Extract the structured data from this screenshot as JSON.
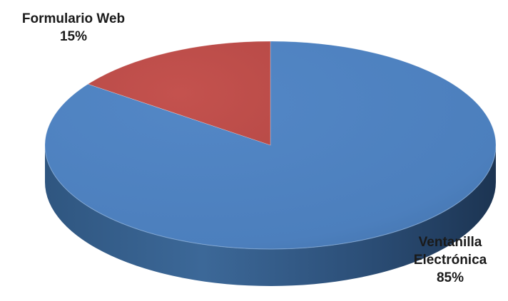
{
  "chart_data": {
    "type": "pie",
    "title": "",
    "slices": [
      {
        "label_lines": [
          "Ventanilla",
          "Electrónica"
        ],
        "percent_label": "85%",
        "value": 85,
        "color": "#4f81bd"
      },
      {
        "label_lines": [
          "Formulario Web"
        ],
        "percent_label": "15%",
        "value": 15,
        "color": "#c0504d"
      }
    ],
    "legend": "none",
    "style": "3d"
  }
}
